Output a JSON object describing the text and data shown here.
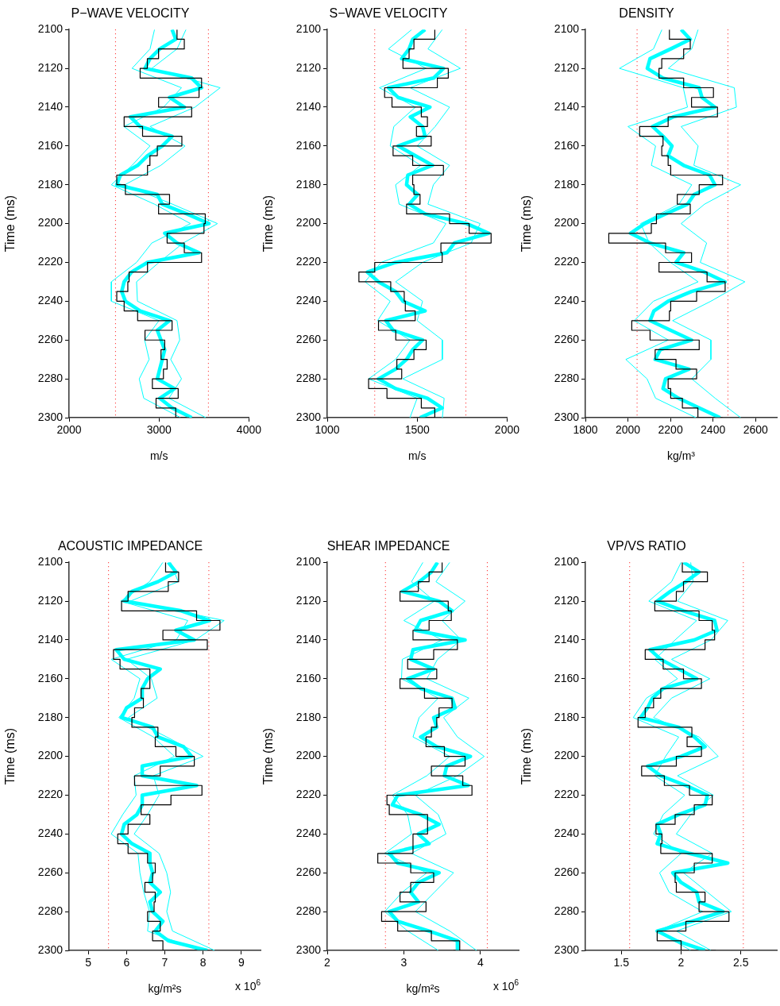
{
  "chart_data": [
    {
      "type": "line",
      "title": "P−WAVE VELOCITY",
      "xlabel": "m/s",
      "ylabel": "Time (ms)",
      "xlim": [
        2000,
        4000
      ],
      "xticks": [
        2000,
        3000,
        4000
      ],
      "ylim": [
        2300,
        2100
      ],
      "yticks": [
        2100,
        2120,
        2140,
        2160,
        2180,
        2200,
        2220,
        2240,
        2260,
        2280,
        2300
      ],
      "grid": false,
      "ref_lines": [
        {
          "axis": "x",
          "value": 2516,
          "color": "#ff0000",
          "line_style": "dotted"
        },
        {
          "axis": "x",
          "value": 3549,
          "color": "#ff0000",
          "line_style": "dotted"
        }
      ],
      "series": [
        {
          "type": "step",
          "color": "#000000",
          "x": [
            3200,
            3281,
            2995,
            2870,
            2790,
            3473,
            3445,
            2995,
            3363,
            2612,
            2817,
            3254,
            2981,
            2899,
            2872,
            2530,
            2626,
            3117,
            2995,
            3514,
            3500,
            3090,
            3281,
            3473,
            2872,
            2667,
            2653,
            2530,
            2612,
            2762,
            3145,
            2844,
            3063,
            3022,
            3090,
            3049,
            2926,
            3213,
            2967,
            3186,
            3336
          ],
          "values": [
            2100,
            2105,
            2110,
            2115,
            2120,
            2125,
            2130,
            2135,
            2140,
            2145,
            2150,
            2155,
            2160,
            2165,
            2170,
            2175,
            2180,
            2185,
            2190,
            2195,
            2200,
            2205,
            2210,
            2215,
            2220,
            2225,
            2230,
            2235,
            2240,
            2245,
            2250,
            2255,
            2260,
            2265,
            2270,
            2275,
            2280,
            2285,
            2290,
            2295,
            2300
          ]
        },
        {
          "type": "line",
          "color": "#00ffff",
          "x": [
            3145,
            3186,
            3008,
            2899,
            2844,
            3363,
            3473,
            3117,
            3281,
            2680,
            2790,
            3145,
            3036,
            2872,
            2762,
            2571,
            2530,
            2981,
            3036,
            3309,
            3555,
            3063,
            3200,
            3445,
            2872,
            2694,
            2612,
            2585,
            2626,
            2790,
            3117,
            2981,
            3022,
            3063,
            3036,
            3008,
            2981,
            3172,
            3008,
            3145,
            3363
          ],
          "values": [
            2100,
            2105,
            2110,
            2115,
            2120,
            2125,
            2130,
            2135,
            2140,
            2145,
            2150,
            2155,
            2160,
            2165,
            2170,
            2175,
            2180,
            2185,
            2190,
            2195,
            2200,
            2205,
            2210,
            2215,
            2220,
            2225,
            2230,
            2235,
            2240,
            2245,
            2250,
            2255,
            2260,
            2265,
            2270,
            2275,
            2280,
            2285,
            2290,
            2295,
            2300
          ]
        },
        {
          "type": "line",
          "color": "#00ffff",
          "x": [
            2950,
            2900,
            2700,
            3250,
            3050,
            2610,
            2900,
            2700,
            2470,
            2950,
            3350,
            2920,
            2750,
            2470,
            2470,
            3000,
            2840,
            2890,
            2780,
            2830,
            3240
          ],
          "values": [
            2100,
            2110,
            2120,
            2130,
            2140,
            2150,
            2160,
            2170,
            2180,
            2190,
            2200,
            2210,
            2220,
            2230,
            2240,
            2250,
            2260,
            2270,
            2280,
            2290,
            2300
          ]
        },
        {
          "type": "line",
          "color": "#00ffff",
          "x": [
            3300,
            3200,
            2920,
            3680,
            3400,
            2900,
            3290,
            3020,
            2620,
            3150,
            3650,
            3270,
            3000,
            2750,
            2760,
            3200,
            3230,
            3130,
            3250,
            3110,
            3520
          ],
          "values": [
            2100,
            2110,
            2120,
            2130,
            2140,
            2150,
            2160,
            2170,
            2180,
            2190,
            2200,
            2210,
            2220,
            2230,
            2240,
            2250,
            2260,
            2270,
            2280,
            2290,
            2300
          ]
        }
      ]
    },
    {
      "type": "line",
      "title": "S−WAVE VELOCITY",
      "xlabel": "m/s",
      "ylabel": "Time (ms)",
      "xlim": [
        1000,
        2000
      ],
      "xticks": [
        1000,
        1500,
        2000
      ],
      "ylim": [
        2300,
        2100
      ],
      "yticks": [
        2100,
        2120,
        2140,
        2160,
        2180,
        2200,
        2220,
        2240,
        2260,
        2280,
        2300
      ],
      "grid": false,
      "ref_lines": [
        {
          "axis": "x",
          "value": 1264,
          "color": "#ff0000",
          "line_style": "dotted"
        },
        {
          "axis": "x",
          "value": 1771,
          "color": "#ff0000",
          "line_style": "dotted"
        }
      ],
      "series": [
        {
          "type": "step",
          "color": "#000000",
          "x": [
            1598,
            1482,
            1455,
            1421,
            1673,
            1612,
            1319,
            1360,
            1523,
            1557,
            1496,
            1578,
            1366,
            1475,
            1646,
            1475,
            1482,
            1516,
            1441,
            1680,
            1789,
            1911,
            1632,
            1639,
            1264,
            1176,
            1353,
            1428,
            1434,
            1489,
            1285,
            1381,
            1550,
            1482,
            1387,
            1414,
            1230,
            1332,
            1523,
            1598,
            1478
          ],
          "values": [
            2100,
            2105,
            2110,
            2115,
            2120,
            2125,
            2130,
            2135,
            2140,
            2145,
            2150,
            2155,
            2160,
            2165,
            2170,
            2175,
            2180,
            2185,
            2190,
            2195,
            2200,
            2205,
            2210,
            2215,
            2220,
            2225,
            2230,
            2235,
            2240,
            2245,
            2250,
            2255,
            2260,
            2265,
            2270,
            2275,
            2280,
            2285,
            2290,
            2295,
            2300
          ]
        },
        {
          "type": "line",
          "color": "#00ffff",
          "x": [
            1544,
            1475,
            1455,
            1414,
            1646,
            1591,
            1340,
            1394,
            1571,
            1462,
            1530,
            1544,
            1394,
            1489,
            1585,
            1448,
            1441,
            1503,
            1455,
            1544,
            1775,
            1898,
            1707,
            1666,
            1380,
            1223,
            1285,
            1380,
            1421,
            1544,
            1326,
            1367,
            1530,
            1475,
            1441,
            1380,
            1285,
            1380,
            1557,
            1639,
            1516
          ],
          "values": [
            2100,
            2105,
            2110,
            2115,
            2120,
            2125,
            2130,
            2135,
            2140,
            2145,
            2150,
            2155,
            2160,
            2165,
            2170,
            2175,
            2180,
            2185,
            2190,
            2195,
            2200,
            2205,
            2210,
            2215,
            2220,
            2225,
            2230,
            2235,
            2240,
            2245,
            2250,
            2255,
            2260,
            2265,
            2270,
            2275,
            2280,
            2285,
            2290,
            2295,
            2300
          ]
        },
        {
          "type": "line",
          "color": "#00ffff",
          "x": [
            1470,
            1340,
            1550,
            1290,
            1490,
            1370,
            1350,
            1520,
            1380,
            1400,
            1660,
            1590,
            1300,
            1210,
            1350,
            1280,
            1460,
            1380,
            1230,
            1500,
            1460
          ],
          "values": [
            2100,
            2110,
            2120,
            2130,
            2140,
            2150,
            2160,
            2170,
            2180,
            2190,
            2200,
            2210,
            2220,
            2230,
            2240,
            2250,
            2260,
            2270,
            2280,
            2290,
            2300
          ]
        },
        {
          "type": "line",
          "color": "#00ffff",
          "x": [
            1640,
            1560,
            1740,
            1460,
            1680,
            1600,
            1500,
            1680,
            1590,
            1560,
            1850,
            1800,
            1530,
            1380,
            1530,
            1500,
            1640,
            1640,
            1420,
            1650,
            1640
          ],
          "values": [
            2100,
            2110,
            2120,
            2130,
            2140,
            2150,
            2160,
            2170,
            2180,
            2190,
            2200,
            2210,
            2220,
            2230,
            2240,
            2250,
            2260,
            2270,
            2280,
            2290,
            2300
          ]
        }
      ]
    },
    {
      "type": "line",
      "title": "DENSITY",
      "xlabel": "kg/m³",
      "ylabel": "Time (ms)",
      "xlim": [
        1800,
        2700
      ],
      "xticks": [
        1800,
        2000,
        2200,
        2400,
        2600
      ],
      "ylim": [
        2300,
        2100
      ],
      "yticks": [
        2100,
        2120,
        2140,
        2160,
        2180,
        2200,
        2220,
        2240,
        2260,
        2280,
        2300
      ],
      "grid": false,
      "ref_lines": [
        {
          "axis": "x",
          "value": 2043,
          "color": "#ff0000",
          "line_style": "dotted"
        },
        {
          "axis": "x",
          "value": 2470,
          "color": "#ff0000",
          "line_style": "dotted"
        }
      ],
      "series": [
        {
          "type": "step",
          "color": "#000000",
          "x": [
            2195,
            2293,
            2262,
            2159,
            2146,
            2262,
            2402,
            2299,
            2421,
            2189,
            2055,
            2165,
            2159,
            2189,
            2201,
            2445,
            2335,
            2232,
            2293,
            2134,
            2110,
            1910,
            2177,
            2299,
            2146,
            2372,
            2457,
            2323,
            2201,
            2195,
            2018,
            2104,
            2335,
            2128,
            2226,
            2323,
            2189,
            2201,
            2256,
            2329,
            2445
          ],
          "values": [
            2100,
            2105,
            2110,
            2115,
            2120,
            2125,
            2130,
            2135,
            2140,
            2145,
            2150,
            2155,
            2160,
            2165,
            2170,
            2175,
            2180,
            2185,
            2190,
            2195,
            2200,
            2205,
            2210,
            2215,
            2220,
            2225,
            2230,
            2235,
            2240,
            2245,
            2250,
            2255,
            2260,
            2265,
            2270,
            2275,
            2280,
            2285,
            2290,
            2295,
            2300
          ]
        },
        {
          "type": "line",
          "color": "#00ffff",
          "x": [
            2250,
            2293,
            2201,
            2104,
            2091,
            2165,
            2335,
            2348,
            2409,
            2213,
            2116,
            2165,
            2207,
            2189,
            2262,
            2384,
            2409,
            2311,
            2280,
            2177,
            2079,
            2012,
            2104,
            2262,
            2226,
            2360,
            2457,
            2299,
            2189,
            2122,
            2104,
            2201,
            2299,
            2152,
            2128,
            2287,
            2177,
            2165,
            2238,
            2335,
            2433
          ],
          "values": [
            2100,
            2105,
            2110,
            2115,
            2120,
            2125,
            2130,
            2135,
            2140,
            2145,
            2150,
            2155,
            2160,
            2165,
            2170,
            2175,
            2180,
            2185,
            2190,
            2195,
            2200,
            2205,
            2210,
            2215,
            2220,
            2225,
            2230,
            2235,
            2240,
            2245,
            2250,
            2255,
            2260,
            2265,
            2270,
            2275,
            2280,
            2285,
            2290,
            2295,
            2300
          ]
        },
        {
          "type": "line",
          "color": "#00ffff",
          "x": [
            2160,
            2120,
            1960,
            2260,
            2280,
            2000,
            2130,
            2110,
            2300,
            2240,
            2060,
            2100,
            2200,
            2330,
            2120,
            2030,
            2190,
            1990,
            2090,
            2130,
            2320
          ],
          "values": [
            2100,
            2110,
            2120,
            2130,
            2140,
            2150,
            2160,
            2170,
            2180,
            2190,
            2200,
            2210,
            2220,
            2230,
            2240,
            2250,
            2260,
            2270,
            2280,
            2290,
            2300
          ]
        },
        {
          "type": "line",
          "color": "#00ffff",
          "x": [
            2330,
            2300,
            2190,
            2500,
            2510,
            2250,
            2330,
            2310,
            2530,
            2360,
            2250,
            2370,
            2340,
            2550,
            2390,
            2210,
            2390,
            2390,
            2300,
            2410,
            2530
          ],
          "values": [
            2100,
            2110,
            2120,
            2130,
            2140,
            2150,
            2160,
            2170,
            2180,
            2190,
            2200,
            2210,
            2220,
            2230,
            2240,
            2250,
            2260,
            2270,
            2280,
            2290,
            2300
          ]
        }
      ]
    },
    {
      "type": "line",
      "title": "ACOUSTIC IMPEDANCE",
      "xlabel": "kg/m²s",
      "ylabel": "Time (ms)",
      "annotations": [
        "x 10$^{6}$"
      ],
      "xlim": [
        4.5,
        9.5
      ],
      "xticks": [
        5,
        6,
        7,
        8,
        9
      ],
      "ylim": [
        2300,
        2100
      ],
      "yticks": [
        2100,
        2120,
        2140,
        2160,
        2180,
        2200,
        2220,
        2240,
        2260,
        2280,
        2300
      ],
      "grid": false,
      "ref_lines": [
        {
          "axis": "x",
          "value": 5.53,
          "color": "#ff0000",
          "line_style": "dotted"
        },
        {
          "axis": "x",
          "value": 8.15,
          "color": "#ff0000",
          "line_style": "dotted"
        }
      ],
      "series": [
        {
          "type": "step",
          "color": "#000000",
          "x": [
            7.02,
            7.36,
            7.09,
            6.04,
            5.87,
            7.83,
            8.44,
            6.95,
            8.11,
            5.66,
            5.83,
            6.61,
            6.61,
            6.38,
            6.44,
            6.21,
            6.14,
            6.82,
            6.75,
            7.29,
            7.77,
            6.88,
            6.21,
            7.97,
            7.16,
            6.38,
            6.61,
            6.04,
            5.77,
            6.04,
            6.55,
            6.75,
            6.68,
            6.48,
            6.75,
            6.72,
            6.55,
            6.88,
            6.68,
            6.95,
            8.17
          ],
          "values": [
            2100,
            2105,
            2110,
            2115,
            2120,
            2125,
            2130,
            2135,
            2140,
            2145,
            2150,
            2155,
            2160,
            2165,
            2170,
            2175,
            2180,
            2185,
            2190,
            2195,
            2200,
            2205,
            2210,
            2215,
            2220,
            2225,
            2230,
            2235,
            2240,
            2245,
            2250,
            2255,
            2260,
            2265,
            2270,
            2275,
            2280,
            2285,
            2290,
            2295,
            2300
          ]
        },
        {
          "type": "line",
          "color": "#00ffff",
          "x": [
            7.09,
            7.29,
            6.82,
            6.14,
            5.94,
            7.43,
            8.17,
            7.29,
            7.77,
            5.73,
            5.94,
            6.88,
            6.55,
            6.41,
            6.41,
            6.0,
            5.87,
            6.68,
            6.82,
            7.49,
            7.7,
            6.41,
            6.41,
            7.83,
            6.41,
            6.41,
            6.27,
            5.94,
            5.87,
            6.14,
            6.61,
            6.61,
            6.68,
            6.61,
            6.88,
            6.61,
            6.68,
            6.95,
            6.75,
            7.09,
            8.11
          ],
          "values": [
            2100,
            2105,
            2110,
            2115,
            2120,
            2125,
            2130,
            2135,
            2140,
            2145,
            2150,
            2155,
            2160,
            2165,
            2170,
            2175,
            2180,
            2185,
            2190,
            2195,
            2200,
            2205,
            2210,
            2215,
            2220,
            2225,
            2230,
            2235,
            2240,
            2245,
            2250,
            2255,
            2260,
            2265,
            2270,
            2275,
            2280,
            2285,
            2290,
            2295,
            2300
          ]
        },
        {
          "type": "line",
          "color": "#00ffff",
          "x": [
            6.95,
            6.6,
            5.85,
            7.6,
            7.3,
            5.6,
            6.35,
            6.2,
            5.8,
            6.7,
            7.25,
            6.2,
            6.25,
            5.9,
            5.6,
            6.3,
            6.35,
            6.45,
            6.6,
            6.55,
            7.9
          ],
          "values": [
            2100,
            2110,
            2120,
            2130,
            2140,
            2150,
            2160,
            2170,
            2180,
            2190,
            2200,
            2210,
            2220,
            2230,
            2240,
            2250,
            2260,
            2270,
            2280,
            2290,
            2300
          ]
        },
        {
          "type": "line",
          "color": "#00ffff",
          "x": [
            7.15,
            7.35,
            6.1,
            8.55,
            7.8,
            6.0,
            6.65,
            6.8,
            6.05,
            7.05,
            8.0,
            6.7,
            6.85,
            6.55,
            6.2,
            6.85,
            7.05,
            7.15,
            7.05,
            7.2,
            8.3
          ],
          "values": [
            2100,
            2110,
            2120,
            2130,
            2140,
            2150,
            2160,
            2170,
            2180,
            2190,
            2200,
            2210,
            2220,
            2230,
            2240,
            2250,
            2260,
            2270,
            2280,
            2290,
            2300
          ]
        }
      ]
    },
    {
      "type": "line",
      "title": "SHEAR IMPEDANCE",
      "xlabel": "kg/m²s",
      "ylabel": "Time (ms)",
      "annotations": [
        "x 10$^{6}$"
      ],
      "xlim": [
        2,
        4.5
      ],
      "xticks": [
        2,
        3,
        4
      ],
      "ylim": [
        2300,
        2100
      ],
      "yticks": [
        2100,
        2120,
        2140,
        2160,
        2180,
        2200,
        2220,
        2240,
        2260,
        2280,
        2300
      ],
      "grid": false,
      "ref_lines": [
        {
          "axis": "x",
          "value": 2.76,
          "color": "#ff0000",
          "line_style": "dotted"
        },
        {
          "axis": "x",
          "value": 4.09,
          "color": "#ff0000",
          "line_style": "dotted"
        }
      ],
      "series": [
        {
          "type": "step",
          "color": "#000000",
          "x": [
            3.5,
            3.33,
            3.19,
            2.95,
            3.58,
            3.62,
            3.33,
            3.12,
            3.7,
            3.39,
            3.05,
            3.43,
            2.95,
            3.27,
            3.63,
            3.46,
            3.43,
            3.36,
            3.29,
            3.53,
            3.8,
            3.36,
            3.77,
            3.89,
            2.78,
            2.81,
            3.31,
            3.31,
            3.12,
            3.12,
            2.66,
            3.09,
            3.39,
            3.09,
            2.95,
            3.29,
            2.71,
            2.92,
            3.36,
            3.73,
            3.65
          ],
          "values": [
            2100,
            2105,
            2110,
            2115,
            2120,
            2125,
            2130,
            2135,
            2140,
            2145,
            2150,
            2155,
            2160,
            2165,
            2170,
            2175,
            2180,
            2185,
            2190,
            2195,
            2200,
            2205,
            2210,
            2215,
            2220,
            2225,
            2230,
            2235,
            2240,
            2245,
            2250,
            2255,
            2260,
            2265,
            2270,
            2275,
            2280,
            2285,
            2290,
            2295,
            2300
          ]
        },
        {
          "type": "line",
          "color": "#00ffff",
          "x": [
            3.44,
            3.36,
            3.2,
            2.98,
            3.46,
            3.63,
            3.22,
            3.15,
            3.8,
            3.12,
            3.09,
            3.39,
            3.05,
            3.22,
            3.63,
            3.67,
            3.39,
            3.43,
            3.22,
            3.43,
            3.87,
            3.56,
            3.53,
            3.84,
            2.92,
            2.85,
            3.22,
            3.46,
            3.19,
            3.33,
            2.81,
            2.92,
            3.46,
            3.19,
            3.09,
            3.19,
            2.81,
            2.92,
            3.33,
            3.7,
            3.7
          ],
          "values": [
            2100,
            2105,
            2110,
            2115,
            2120,
            2125,
            2130,
            2135,
            2140,
            2145,
            2150,
            2155,
            2160,
            2165,
            2170,
            2175,
            2180,
            2185,
            2190,
            2195,
            2200,
            2205,
            2210,
            2215,
            2220,
            2225,
            2230,
            2235,
            2240,
            2245,
            2250,
            2255,
            2260,
            2265,
            2270,
            2275,
            2280,
            2285,
            2290,
            2295,
            2300
          ]
        },
        {
          "type": "line",
          "color": "#00ffff",
          "x": [
            3.25,
            3.1,
            3.4,
            3.0,
            3.5,
            2.98,
            2.97,
            3.45,
            3.2,
            3.12,
            3.6,
            3.3,
            2.85,
            3.05,
            3.1,
            2.75,
            3.3,
            2.98,
            2.75,
            3.05,
            3.45
          ],
          "values": [
            2100,
            2110,
            2120,
            2130,
            2140,
            2150,
            2160,
            2170,
            2180,
            2190,
            2200,
            2210,
            2220,
            2230,
            2240,
            2250,
            2260,
            2270,
            2280,
            2290,
            2300
          ]
        },
        {
          "type": "line",
          "color": "#00ffff",
          "x": [
            3.6,
            3.42,
            3.8,
            3.5,
            3.75,
            3.44,
            3.3,
            3.85,
            3.52,
            3.7,
            4.05,
            3.7,
            3.15,
            3.45,
            3.55,
            3.1,
            3.65,
            3.4,
            3.15,
            3.6,
            3.95
          ],
          "values": [
            2100,
            2110,
            2120,
            2130,
            2140,
            2150,
            2160,
            2170,
            2180,
            2190,
            2200,
            2210,
            2220,
            2230,
            2240,
            2250,
            2260,
            2270,
            2280,
            2290,
            2300
          ]
        }
      ]
    },
    {
      "type": "line",
      "title": "VP/VS RATIO",
      "ylabel": "Time (ms)",
      "xlim": [
        1.2,
        2.8
      ],
      "xticks": [
        1.5,
        2,
        2.5
      ],
      "ylim": [
        2300,
        2100
      ],
      "yticks": [
        2100,
        2120,
        2140,
        2160,
        2180,
        2200,
        2220,
        2240,
        2260,
        2280,
        2300
      ],
      "grid": false,
      "ref_lines": [
        {
          "axis": "x",
          "value": 1.57,
          "color": "#ff0000",
          "line_style": "dotted"
        },
        {
          "axis": "x",
          "value": 2.52,
          "color": "#ff0000",
          "line_style": "dotted"
        }
      ],
      "series": [
        {
          "type": "step",
          "color": "#000000",
          "x": [
            2.01,
            2.22,
            2.02,
            1.96,
            1.78,
            2.15,
            2.26,
            2.28,
            2.2,
            1.7,
            1.85,
            2.02,
            2.17,
            1.83,
            1.77,
            1.7,
            1.64,
            2.09,
            2.05,
            2.17,
            1.96,
            1.67,
            1.86,
            2.07,
            2.26,
            2.11,
            1.95,
            1.79,
            1.84,
            1.83,
            2.26,
            2.11,
            1.95,
            1.96,
            2.2,
            2.15,
            2.4,
            2.04,
            1.8,
            2.0,
            2.29
          ],
          "values": [
            2100,
            2105,
            2110,
            2115,
            2120,
            2125,
            2130,
            2135,
            2140,
            2145,
            2150,
            2155,
            2160,
            2165,
            2170,
            2175,
            2180,
            2185,
            2190,
            2195,
            2200,
            2205,
            2210,
            2215,
            2220,
            2225,
            2230,
            2235,
            2240,
            2245,
            2250,
            2255,
            2260,
            2265,
            2270,
            2275,
            2280,
            2285,
            2290,
            2295,
            2300
          ]
        },
        {
          "type": "line",
          "color": "#00ffff",
          "x": [
            2.02,
            2.15,
            2.04,
            1.91,
            1.8,
            2.02,
            2.28,
            2.3,
            2.11,
            1.74,
            1.83,
            1.98,
            2.13,
            1.85,
            1.76,
            1.72,
            1.66,
            1.98,
            2.11,
            2.2,
            2.0,
            1.72,
            1.83,
            2.04,
            2.22,
            2.2,
            1.98,
            1.8,
            1.83,
            1.8,
            2.07,
            2.39,
            1.93,
            2.0,
            2.13,
            2.15,
            2.35,
            2.09,
            1.8,
            1.96,
            2.2
          ],
          "values": [
            2100,
            2105,
            2110,
            2115,
            2120,
            2125,
            2130,
            2135,
            2140,
            2145,
            2150,
            2155,
            2160,
            2165,
            2170,
            2175,
            2180,
            2185,
            2190,
            2195,
            2200,
            2205,
            2210,
            2215,
            2220,
            2225,
            2230,
            2235,
            2240,
            2245,
            2250,
            2255,
            2260,
            2265,
            2270,
            2275,
            2280,
            2285,
            2290,
            2295,
            2300
          ]
        },
        {
          "type": "line",
          "color": "#00ffff",
          "x": [
            2.0,
            1.92,
            1.73,
            2.13,
            1.95,
            1.78,
            1.97,
            1.71,
            1.6,
            1.98,
            1.87,
            1.78,
            2.03,
            1.85,
            1.77,
            2.0,
            1.82,
            1.9,
            2.18,
            1.8,
            2.08
          ],
          "values": [
            2100,
            2110,
            2120,
            2130,
            2140,
            2150,
            2160,
            2170,
            2180,
            2190,
            2200,
            2210,
            2220,
            2230,
            2240,
            2250,
            2260,
            2270,
            2280,
            2290,
            2300
          ]
        },
        {
          "type": "line",
          "color": "#00ffff",
          "x": [
            2.08,
            2.1,
            1.97,
            2.39,
            2.25,
            1.92,
            2.24,
            1.92,
            1.77,
            2.15,
            2.31,
            1.97,
            2.27,
            2.08,
            1.96,
            2.26,
            2.02,
            2.22,
            2.42,
            1.96,
            2.25
          ],
          "values": [
            2100,
            2110,
            2120,
            2130,
            2140,
            2150,
            2160,
            2170,
            2180,
            2190,
            2200,
            2210,
            2220,
            2230,
            2240,
            2250,
            2260,
            2270,
            2280,
            2290,
            2300
          ]
        }
      ]
    }
  ]
}
